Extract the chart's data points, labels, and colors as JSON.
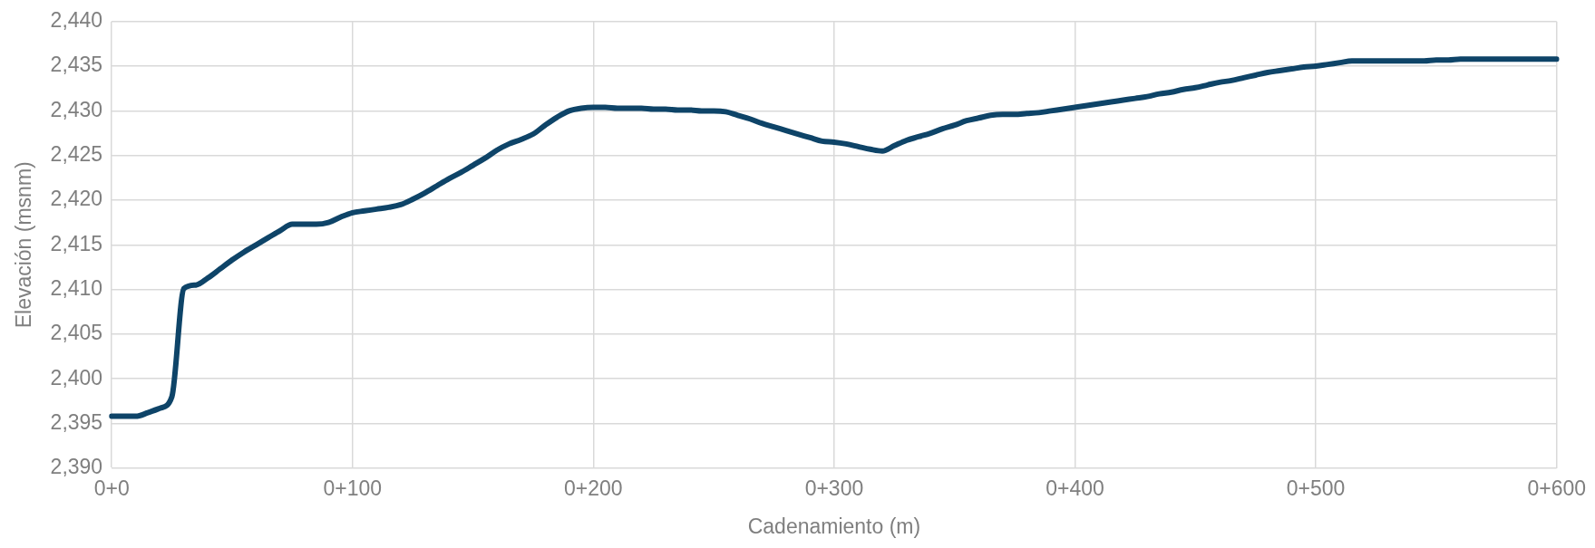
{
  "chart_data": {
    "type": "line",
    "xlabel": "Cadenamiento (m)",
    "ylabel": "Elevación (msnm)",
    "categories": [
      "0+0",
      null,
      null,
      null,
      null,
      null,
      null,
      null,
      null,
      null,
      null,
      null,
      null,
      null,
      null,
      null,
      null,
      null,
      null,
      null,
      "0+100",
      null,
      null,
      null,
      null,
      null,
      null,
      null,
      null,
      null,
      null,
      null,
      null,
      null,
      null,
      null,
      null,
      null,
      null,
      null,
      "0+200",
      null,
      null,
      null,
      null,
      null,
      null,
      null,
      null,
      null,
      null,
      null,
      null,
      null,
      null,
      null,
      null,
      null,
      null,
      null,
      "0+300",
      null,
      null,
      null,
      null,
      null,
      null,
      null,
      null,
      null,
      null,
      null,
      null,
      null,
      null,
      null,
      null,
      null,
      null,
      null,
      "0+400",
      null,
      null,
      null,
      null,
      null,
      null,
      null,
      null,
      null,
      null,
      null,
      null,
      null,
      null,
      null,
      null,
      null,
      null,
      null,
      "0+500",
      null,
      null,
      null,
      null,
      null,
      null,
      null,
      null,
      null,
      null,
      null,
      null,
      null,
      null,
      null,
      null,
      null,
      null,
      null,
      "0+600"
    ],
    "ylim": [
      2390,
      2440
    ],
    "yticks": [
      {
        "value": 2390,
        "label": "2,390"
      },
      {
        "value": 2395,
        "label": "2,395"
      },
      {
        "value": 2400,
        "label": "2,400"
      },
      {
        "value": 2405,
        "label": "2,405"
      },
      {
        "value": 2410,
        "label": "2,410"
      },
      {
        "value": 2415,
        "label": "2,415"
      },
      {
        "value": 2420,
        "label": "2,420"
      },
      {
        "value": 2425,
        "label": "2,425"
      },
      {
        "value": 2430,
        "label": "2,430"
      },
      {
        "value": 2435,
        "label": "2,435"
      },
      {
        "value": 2440,
        "label": "2,440"
      }
    ],
    "grid": true,
    "marker": "none",
    "line_style": "solid",
    "series": [
      {
        "color": "#0e4468",
        "values": [
          2395.8,
          2395.8,
          2395.8,
          2396.2,
          2396.7,
          2398,
          2410.1,
          2410.5,
          2411.3,
          2412.3,
          2413.3,
          2414.2,
          2415,
          2415.8,
          2416.6,
          2417.3,
          2417.3,
          2417.3,
          2417.5,
          2418.1,
          2418.6,
          2418.8,
          2419,
          2419.2,
          2419.5,
          2420.1,
          2420.8,
          2421.6,
          2422.4,
          2423.1,
          2423.9,
          2424.7,
          2425.6,
          2426.3,
          2426.8,
          2427.4,
          2428.4,
          2429.3,
          2430,
          2430.3,
          2430.4,
          2430.4,
          2430.3,
          2430.3,
          2430.3,
          2430.2,
          2430.2,
          2430.1,
          2430.1,
          2430,
          2430,
          2429.9,
          2429.5,
          2429.1,
          2428.6,
          2428.2,
          2427.8,
          2427.4,
          2427,
          2426.6,
          2426.5,
          2426.3,
          2426,
          2425.7,
          2425.5,
          2426.1,
          2426.7,
          2427.1,
          2427.5,
          2428,
          2428.4,
          2428.9,
          2429.2,
          2429.5,
          2429.6,
          2429.6,
          2429.7,
          2429.8,
          2430,
          2430.2,
          2430.4,
          2430.6,
          2430.8,
          2431,
          2431.2,
          2431.4,
          2431.6,
          2431.9,
          2432.1,
          2432.4,
          2432.6,
          2432.9,
          2433.2,
          2433.4,
          2433.7,
          2434,
          2434.3,
          2434.5,
          2434.7,
          2434.9,
          2435,
          2435.2,
          2435.4,
          2435.6,
          2435.6,
          2435.6,
          2435.6,
          2435.6,
          2435.6,
          2435.6,
          2435.7,
          2435.7,
          2435.8,
          2435.8,
          2435.8,
          2435.8,
          2435.8,
          2435.8,
          2435.8,
          2435.8,
          2435.8
        ]
      }
    ]
  }
}
